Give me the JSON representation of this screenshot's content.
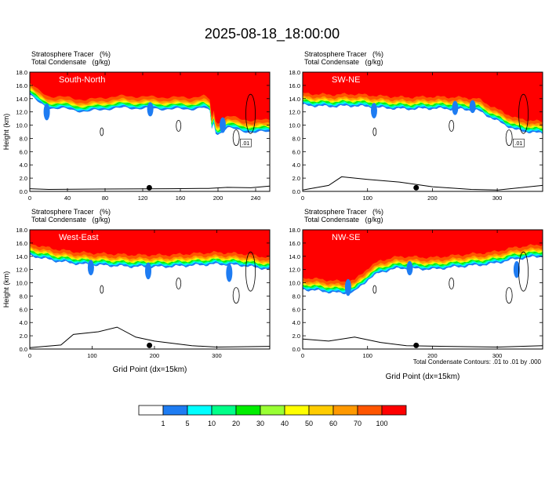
{
  "figure": {
    "title": "2025-08-18_18:00:00",
    "footnote": "Total Condensate Contours: .01 to .01 by .000"
  },
  "colorbar": {
    "levels": [
      0,
      1,
      5,
      10,
      20,
      30,
      40,
      50,
      60,
      70,
      100
    ],
    "labels": [
      "1",
      "5",
      "10",
      "20",
      "30",
      "40",
      "50",
      "60",
      "70",
      "100"
    ],
    "colors": [
      "#ffffff",
      "#1e7cf2",
      "#00ffff",
      "#00ff88",
      "#00ee00",
      "#99ff33",
      "#ffff00",
      "#ffcc00",
      "#ff9900",
      "#ff5500",
      "#ff0000"
    ]
  },
  "chart_data": [
    {
      "type": "heatmap",
      "label": "South-North",
      "line1": "Stratosphere Tracer   (%)",
      "line2": "Total Condensate   (g/kg)",
      "ylabel": "Height (km)",
      "xlabel": "",
      "xlim": [
        0,
        255
      ],
      "ylim": [
        0,
        18
      ],
      "xticks": [
        0,
        40,
        80,
        120,
        160,
        200,
        240
      ],
      "yticks": [
        0,
        2,
        4,
        6,
        8,
        10,
        12,
        14,
        16,
        18
      ],
      "tropopause": [
        [
          0,
          15.8
        ],
        [
          10,
          14.5
        ],
        [
          20,
          13.8
        ],
        [
          40,
          13.6
        ],
        [
          60,
          13.2
        ],
        [
          80,
          13.6
        ],
        [
          100,
          13.8
        ],
        [
          120,
          13.7
        ],
        [
          150,
          13.6
        ],
        [
          170,
          13.6
        ],
        [
          185,
          13.8
        ],
        [
          192,
          13.2
        ],
        [
          196,
          11.8
        ],
        [
          192,
          10.0
        ],
        [
          198,
          9.6
        ],
        [
          210,
          10.8
        ],
        [
          225,
          10.3
        ],
        [
          240,
          10.1
        ],
        [
          255,
          10.2
        ]
      ],
      "dips": [
        [
          18,
          12.0,
          0.8
        ],
        [
          128,
          12.4,
          0.6
        ],
        [
          205,
          10.0,
          0.7
        ]
      ],
      "terrain": [
        [
          0,
          0.4
        ],
        [
          20,
          0.3
        ],
        [
          80,
          0.35
        ],
        [
          150,
          0.4
        ],
        [
          190,
          0.45
        ],
        [
          210,
          0.6
        ],
        [
          235,
          0.55
        ],
        [
          255,
          0.8
        ]
      ],
      "contour_label": ".01",
      "marker_x": 127
    },
    {
      "type": "heatmap",
      "label": "SW-NE",
      "line1": "Stratosphere Tracer   (%)",
      "line2": "Total Condensate   (g/kg)",
      "ylabel": "",
      "xlabel": "",
      "xlim": [
        0,
        370
      ],
      "ylim": [
        0,
        18
      ],
      "xticks": [
        0,
        100,
        200,
        300
      ],
      "yticks": [
        0,
        2,
        4,
        6,
        8,
        10,
        12,
        14,
        16,
        18
      ],
      "tropopause": [
        [
          0,
          14.2
        ],
        [
          40,
          14.0
        ],
        [
          80,
          14.1
        ],
        [
          120,
          13.8
        ],
        [
          160,
          13.6
        ],
        [
          200,
          13.7
        ],
        [
          240,
          13.6
        ],
        [
          270,
          13.4
        ],
        [
          300,
          11.8
        ],
        [
          330,
          10.4
        ],
        [
          370,
          9.9
        ]
      ],
      "dips": [
        [
          110,
          12.2,
          0.7
        ],
        [
          235,
          12.6,
          0.6
        ],
        [
          262,
          12.8,
          0.5
        ]
      ],
      "terrain": [
        [
          0,
          0.2
        ],
        [
          40,
          0.9
        ],
        [
          60,
          2.2
        ],
        [
          100,
          1.8
        ],
        [
          150,
          1.4
        ],
        [
          200,
          0.7
        ],
        [
          260,
          0.3
        ],
        [
          300,
          0.2
        ],
        [
          370,
          0.9
        ]
      ],
      "contour_label": ".01",
      "marker_x": 175
    },
    {
      "type": "heatmap",
      "label": "West-East",
      "line1": "Stratosphere Tracer   (%)",
      "line2": "Total Condensate   (g/kg)",
      "ylabel": "Height (km)",
      "xlabel": "Grid Point (dx=15km)",
      "xlim": [
        0,
        385
      ],
      "ylim": [
        0,
        18
      ],
      "xticks": [
        0,
        100,
        200,
        300
      ],
      "yticks": [
        0,
        2,
        4,
        6,
        8,
        10,
        12,
        14,
        16,
        18
      ],
      "tropopause": [
        [
          0,
          15.3
        ],
        [
          40,
          14.5
        ],
        [
          80,
          14.0
        ],
        [
          120,
          13.8
        ],
        [
          170,
          13.6
        ],
        [
          220,
          13.6
        ],
        [
          260,
          13.8
        ],
        [
          300,
          14.0
        ],
        [
          340,
          13.8
        ],
        [
          385,
          13.2
        ]
      ],
      "dips": [
        [
          98,
          12.3,
          0.7
        ],
        [
          190,
          11.8,
          0.8
        ],
        [
          320,
          11.5,
          0.9
        ]
      ],
      "terrain": [
        [
          0,
          0.2
        ],
        [
          50,
          0.6
        ],
        [
          70,
          2.2
        ],
        [
          110,
          2.6
        ],
        [
          140,
          3.3
        ],
        [
          170,
          1.8
        ],
        [
          200,
          1.2
        ],
        [
          260,
          0.5
        ],
        [
          300,
          0.3
        ],
        [
          385,
          0.4
        ]
      ],
      "contour_label": "",
      "marker_x": 192
    },
    {
      "type": "heatmap",
      "label": "NW-SE",
      "line1": "Stratosphere Tracer   (%)",
      "line2": "Total Condensate   (g/kg)",
      "ylabel": "",
      "xlabel": "Grid Point (dx=15km)",
      "xlim": [
        0,
        370
      ],
      "ylim": [
        0,
        18
      ],
      "xticks": [
        0,
        100,
        200,
        300
      ],
      "yticks": [
        0,
        2,
        4,
        6,
        8,
        10,
        12,
        14,
        16,
        18
      ],
      "tropopause": [
        [
          0,
          10.2
        ],
        [
          40,
          9.8
        ],
        [
          60,
          9.6
        ],
        [
          80,
          9.8
        ],
        [
          100,
          11.6
        ],
        [
          120,
          12.8
        ],
        [
          150,
          13.4
        ],
        [
          200,
          13.2
        ],
        [
          240,
          13.6
        ],
        [
          290,
          14.0
        ],
        [
          330,
          14.8
        ],
        [
          370,
          15.2
        ]
      ],
      "dips": [
        [
          70,
          9.3,
          0.8
        ],
        [
          165,
          12.2,
          0.6
        ],
        [
          330,
          12.0,
          0.8
        ]
      ],
      "terrain": [
        [
          0,
          1.5
        ],
        [
          40,
          1.2
        ],
        [
          80,
          1.8
        ],
        [
          120,
          1.0
        ],
        [
          160,
          0.5
        ],
        [
          220,
          0.4
        ],
        [
          300,
          0.3
        ],
        [
          370,
          0.5
        ]
      ],
      "contour_label": "",
      "marker_x": 175
    }
  ]
}
